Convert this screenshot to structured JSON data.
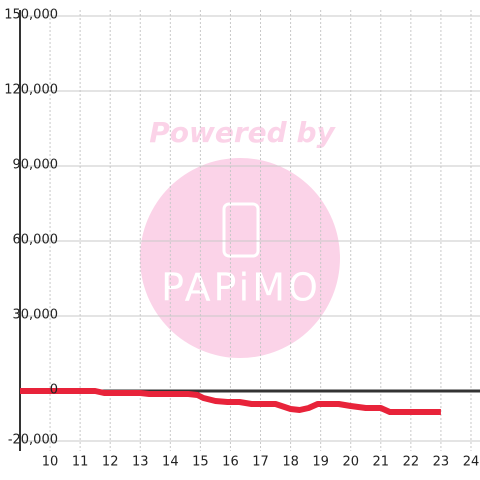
{
  "chart_data": {
    "type": "line",
    "watermark": {
      "title": "Powered by",
      "brand": "PAPiMO"
    },
    "x": [
      9,
      11.5,
      11.8,
      13,
      13.3,
      14.6,
      14.9,
      15.1,
      15.5,
      15.9,
      16.3,
      16.7,
      17.5,
      18,
      18.3,
      18.6,
      18.9,
      19.6,
      20,
      20.5,
      21,
      21.3,
      23
    ],
    "series": [
      {
        "color": "#e8233a",
        "values": [
          0,
          0,
          -800,
          -800,
          -1200,
          -1200,
          -1600,
          -2800,
          -4000,
          -4400,
          -4400,
          -5200,
          -5200,
          -7200,
          -7600,
          -6800,
          -5200,
          -5200,
          -6000,
          -6800,
          -6800,
          -8400,
          -8400
        ]
      }
    ],
    "xlim": [
      9,
      24.3
    ],
    "xticks": [
      10,
      11,
      12,
      13,
      14,
      15,
      16,
      17,
      18,
      19,
      20,
      21,
      22,
      23,
      24
    ],
    "ylim": [
      -20000,
      150000
    ],
    "yticks": [
      {
        "value": -20000,
        "label": "-20,000"
      },
      0,
      {
        "value": 30000,
        "label": "30,000"
      },
      {
        "value": 60000,
        "label": "60,000"
      },
      {
        "value": 90000,
        "label": "90,000"
      },
      {
        "value": 120000,
        "label": "120,000"
      },
      {
        "value": 150000,
        "label": "150,000"
      }
    ],
    "grid": true
  }
}
